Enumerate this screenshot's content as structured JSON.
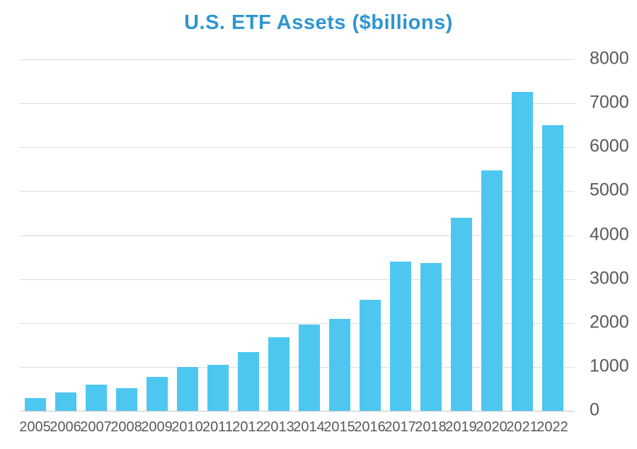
{
  "page": {
    "background": "#ffffff"
  },
  "chart_data": {
    "type": "bar",
    "title": "U.S. ETF Assets ($billions)",
    "categories": [
      "2005",
      "2006",
      "2007",
      "2008",
      "2009",
      "2010",
      "2011",
      "2012",
      "2013",
      "2014",
      "2015",
      "2016",
      "2017",
      "2018",
      "2019",
      "2020",
      "2021",
      "2022"
    ],
    "values": [
      290,
      420,
      600,
      520,
      770,
      990,
      1050,
      1330,
      1670,
      1960,
      2100,
      2520,
      3400,
      3370,
      4400,
      5470,
      7260,
      6500
    ],
    "xlabel": "",
    "ylabel": "",
    "ylim": [
      0,
      8000
    ],
    "yticks": [
      0,
      1000,
      2000,
      3000,
      4000,
      5000,
      6000,
      7000,
      8000
    ],
    "y_axis_side": "right",
    "grid": true,
    "legend": false,
    "colors": {
      "bar": "#4DC7F0",
      "title": "#2E96D2",
      "axis_text": "#595959",
      "gridline": "#DCDCDC",
      "baseline": "#C8C8C8",
      "tick": "#DCDCDC"
    }
  }
}
